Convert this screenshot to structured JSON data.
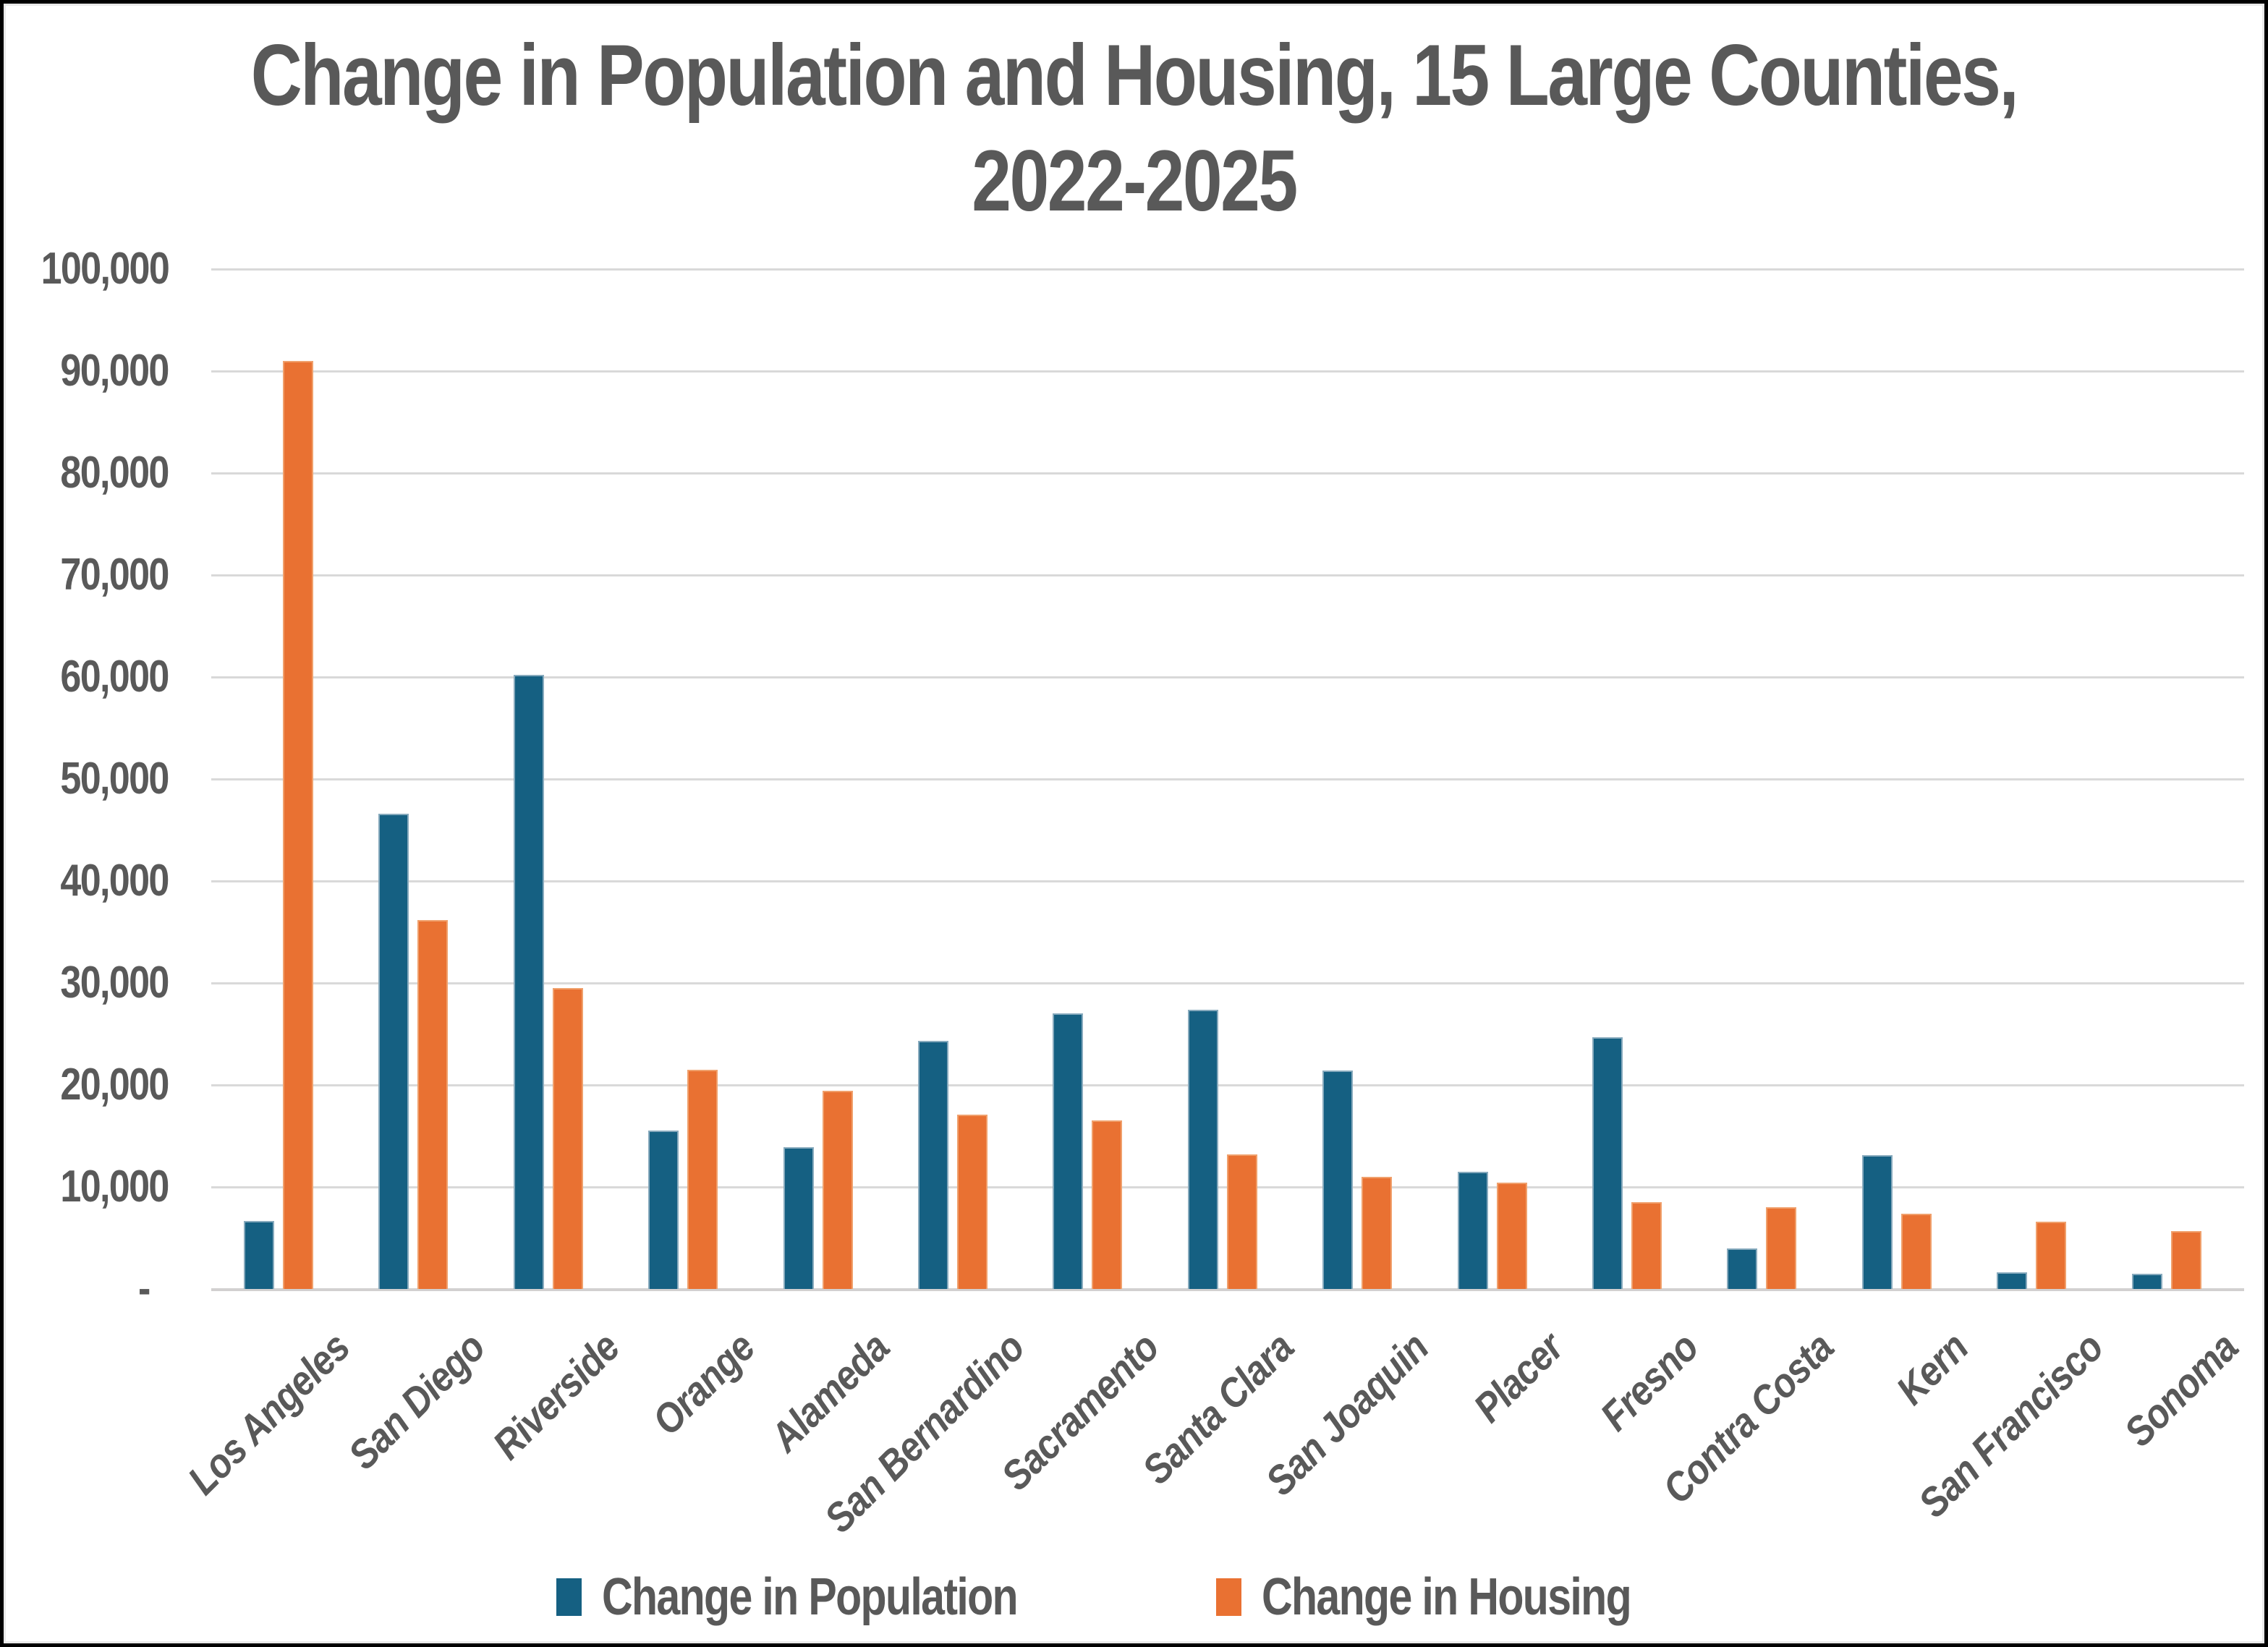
{
  "title": {
    "line1": "Change in Population and Housing, 15 Large Counties,",
    "line2": "2022-2025"
  },
  "legend": {
    "population_label": "Change in Population",
    "housing_label": "Change in Housing"
  },
  "colors": {
    "population": "#156082",
    "housing": "#E97132",
    "text": "#595959",
    "gridline": "#D9D9D9"
  },
  "chart_data": {
    "type": "bar",
    "title": "Change in Population and Housing, 15 Large Counties, 2022-2025",
    "categories": [
      "Los Angeles",
      "San Diego",
      "Riverside",
      "Orange",
      "Alameda",
      "San Bernardino",
      "Sacramento",
      "Santa Clara",
      "San Joaquin",
      "Placer",
      "Fresno",
      "Contra Costa",
      "Kern",
      "San Francisco",
      "Sonoma"
    ],
    "series": [
      {
        "name": "Change in Population",
        "color": "#156082",
        "values": [
          6700,
          46600,
          60200,
          15500,
          13900,
          24300,
          27000,
          27400,
          21400,
          11500,
          24700,
          4000,
          13100,
          1600,
          1500
        ]
      },
      {
        "name": "Change in Housing",
        "color": "#E97132",
        "values": [
          91000,
          36200,
          29500,
          21500,
          19400,
          17100,
          16500,
          13200,
          11000,
          10400,
          8500,
          8000,
          7400,
          6600,
          5700
        ]
      }
    ],
    "xlabel": "",
    "ylabel": "",
    "y_axis": {
      "min": 0,
      "max": 100000,
      "tick_interval": 10000,
      "ticks": [
        {
          "label": "100,000",
          "value": 100000
        },
        {
          "label": "90,000",
          "value": 90000
        },
        {
          "label": "80,000",
          "value": 80000
        },
        {
          "label": "70,000",
          "value": 70000
        },
        {
          "label": "60,000",
          "value": 60000
        },
        {
          "label": "50,000",
          "value": 50000
        },
        {
          "label": "40,000",
          "value": 40000
        },
        {
          "label": "30,000",
          "value": 30000
        },
        {
          "label": "20,000",
          "value": 20000
        },
        {
          "label": "10,000",
          "value": 10000
        },
        {
          "label": "-",
          "value": 0
        }
      ]
    },
    "grid": "horizontal",
    "legend_position": "bottom",
    "x_tick_rotation": 45
  }
}
